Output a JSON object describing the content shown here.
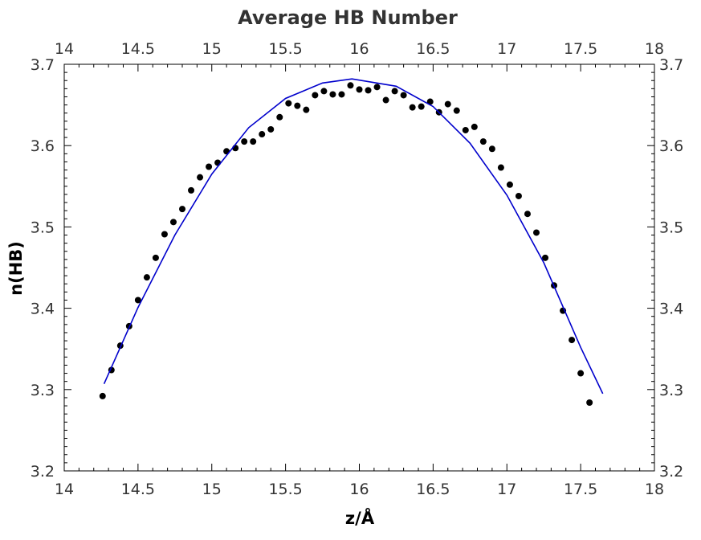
{
  "chart_data": {
    "type": "scatter",
    "title": "Average HB Number",
    "xlabel": "z/Å",
    "ylabel": "n(HB)",
    "xlim": [
      14,
      18
    ],
    "ylim": [
      3.2,
      3.7
    ],
    "x_ticks": [
      "14",
      "14.5",
      "15",
      "15.5",
      "16",
      "16.5",
      "17",
      "17.5",
      "18"
    ],
    "y_ticks": [
      "3.2",
      "3.3",
      "3.4",
      "3.5",
      "3.6",
      "3.7"
    ],
    "grid": false,
    "mirror_axes": true,
    "series": [
      {
        "style": "points",
        "color": "#000000",
        "x": [
          14.26,
          14.32,
          14.38,
          14.44,
          14.5,
          14.56,
          14.62,
          14.68,
          14.74,
          14.8,
          14.86,
          14.92,
          14.98,
          15.04,
          15.1,
          15.16,
          15.22,
          15.28,
          15.34,
          15.4,
          15.46,
          15.52,
          15.58,
          15.64,
          15.7,
          15.76,
          15.82,
          15.88,
          15.94,
          16.0,
          16.06,
          16.12,
          16.18,
          16.24,
          16.3,
          16.36,
          16.42,
          16.48,
          16.54,
          16.6,
          16.66,
          16.72,
          16.78,
          16.84,
          16.9,
          16.96,
          17.02,
          17.08,
          17.14,
          17.2,
          17.26,
          17.32,
          17.38,
          17.44,
          17.5,
          17.56
        ],
        "y": [
          3.292,
          3.324,
          3.354,
          3.378,
          3.41,
          3.438,
          3.462,
          3.491,
          3.506,
          3.522,
          3.545,
          3.561,
          3.574,
          3.579,
          3.593,
          3.597,
          3.605,
          3.605,
          3.614,
          3.62,
          3.635,
          3.652,
          3.649,
          3.644,
          3.662,
          3.667,
          3.663,
          3.663,
          3.674,
          3.669,
          3.668,
          3.672,
          3.656,
          3.667,
          3.662,
          3.647,
          3.648,
          3.654,
          3.641,
          3.651,
          3.643,
          3.619,
          3.623,
          3.605,
          3.596,
          3.573,
          3.552,
          3.538,
          3.516,
          3.493,
          3.462,
          3.428,
          3.397,
          3.361,
          3.32,
          3.284
        ]
      },
      {
        "style": "line",
        "color": "#0000cc",
        "x": [
          14.27,
          14.5,
          14.75,
          15.0,
          15.25,
          15.5,
          15.75,
          15.95,
          16.25,
          16.5,
          16.75,
          17.0,
          17.25,
          17.5,
          17.65
        ],
        "y": [
          3.307,
          3.401,
          3.49,
          3.565,
          3.622,
          3.658,
          3.677,
          3.682,
          3.673,
          3.648,
          3.603,
          3.539,
          3.456,
          3.352,
          3.295
        ]
      }
    ]
  }
}
